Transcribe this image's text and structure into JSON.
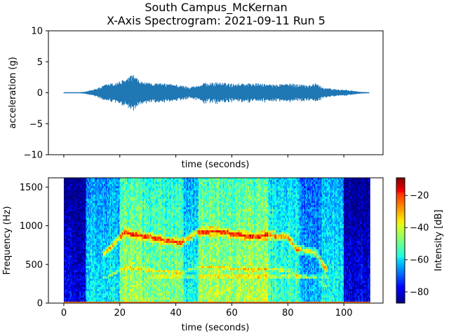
{
  "figure": {
    "title_line1": "South Campus_McKernan",
    "title_line2": "X-Axis Spectrogram: 2021-09-11 Run 5"
  },
  "chart_data": [
    {
      "type": "line",
      "name": "acceleration-waveform",
      "xlabel": "time (seconds)",
      "ylabel": "acceleration (g)",
      "xlim": [
        -5.5,
        114
      ],
      "ylim": [
        -10,
        10
      ],
      "yticks": [
        -10,
        -5,
        0,
        5,
        10
      ],
      "ytick_labels": [
        "−10",
        "−5",
        "0",
        "5",
        "10"
      ],
      "xticks": [
        0,
        20,
        40,
        60,
        80,
        100
      ],
      "xtick_labels_visible": false,
      "line_color": "#1f77b4",
      "grid": false,
      "envelope": {
        "t": [
          0,
          5,
          8,
          10,
          13,
          15,
          18,
          20,
          22,
          24,
          25,
          26,
          27,
          28,
          30,
          33,
          36,
          40,
          42,
          45,
          48,
          50,
          55,
          60,
          65,
          70,
          74,
          75,
          78,
          80,
          85,
          88,
          90,
          92,
          95,
          100,
          103,
          105,
          108,
          109
        ],
        "amplitude": [
          0.05,
          0.05,
          0.2,
          0.5,
          0.9,
          1.4,
          1.6,
          1.9,
          2.2,
          2.8,
          3.0,
          2.4,
          2.0,
          1.8,
          1.6,
          1.6,
          1.5,
          1.4,
          1.2,
          1.0,
          1.2,
          1.6,
          1.7,
          1.5,
          1.6,
          1.5,
          1.4,
          1.3,
          1.5,
          1.5,
          1.4,
          1.3,
          1.6,
          1.0,
          0.7,
          0.5,
          0.35,
          0.2,
          0.1,
          0.05
        ]
      }
    },
    {
      "type": "heatmap",
      "name": "spectrogram",
      "xlabel": "time (seconds)",
      "ylabel": "Frequency (Hz)",
      "xlim": [
        -5.5,
        114
      ],
      "ylim": [
        0,
        1620
      ],
      "xticks": [
        0,
        20,
        40,
        60,
        80,
        100
      ],
      "xtick_labels": [
        "0",
        "20",
        "40",
        "60",
        "80",
        "100"
      ],
      "yticks": [
        0,
        500,
        1000,
        1500
      ],
      "ytick_labels": [
        "0",
        "500",
        "1000",
        "1500"
      ],
      "data_time_range": [
        0,
        109
      ],
      "colormap": "jet",
      "colorbar": {
        "label": "Intensity [dB]",
        "range": [
          -87,
          -9
        ],
        "ticks": [
          -80,
          -60,
          -40,
          -20
        ],
        "tick_labels": [
          "−80",
          "−60",
          "−40",
          "−20"
        ]
      },
      "activity_segments": [
        {
          "t": [
            0,
            8
          ],
          "level_db": -78
        },
        {
          "t": [
            8,
            20
          ],
          "level_db": -58
        },
        {
          "t": [
            20,
            28
          ],
          "level_db": -45
        },
        {
          "t": [
            28,
            43
          ],
          "level_db": -48
        },
        {
          "t": [
            43,
            48
          ],
          "level_db": -56
        },
        {
          "t": [
            48,
            73
          ],
          "level_db": -44
        },
        {
          "t": [
            73,
            84
          ],
          "level_db": -52
        },
        {
          "t": [
            84,
            92
          ],
          "level_db": -62
        },
        {
          "t": [
            92,
            100
          ],
          "level_db": -56
        },
        {
          "t": [
            100,
            109
          ],
          "level_db": -78
        }
      ],
      "dominant_band": {
        "t": [
          15,
          20,
          22,
          25,
          28,
          35,
          42,
          48,
          55,
          62,
          68,
          73,
          80,
          83,
          90,
          93
        ],
        "freq_hz": [
          650,
          850,
          920,
          880,
          870,
          820,
          780,
          920,
          930,
          880,
          860,
          880,
          850,
          700,
          650,
          450
        ]
      }
    }
  ]
}
